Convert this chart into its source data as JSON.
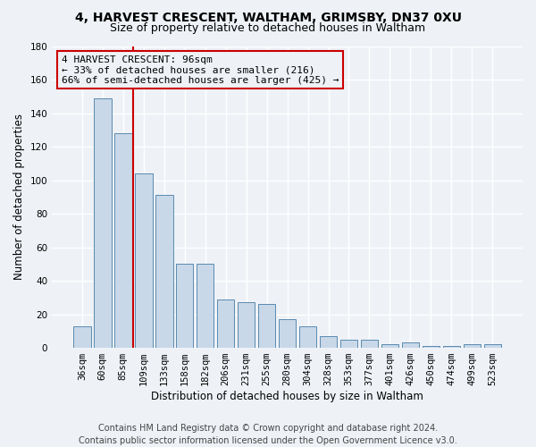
{
  "title_line1": "4, HARVEST CRESCENT, WALTHAM, GRIMSBY, DN37 0XU",
  "title_line2": "Size of property relative to detached houses in Waltham",
  "xlabel": "Distribution of detached houses by size in Waltham",
  "ylabel": "Number of detached properties",
  "bar_color": "#c8d8e8",
  "bar_edge_color": "#5a8ab0",
  "categories": [
    "36sqm",
    "60sqm",
    "85sqm",
    "109sqm",
    "133sqm",
    "158sqm",
    "182sqm",
    "206sqm",
    "231sqm",
    "255sqm",
    "280sqm",
    "304sqm",
    "328sqm",
    "353sqm",
    "377sqm",
    "401sqm",
    "426sqm",
    "450sqm",
    "474sqm",
    "499sqm",
    "523sqm"
  ],
  "values": [
    13,
    149,
    128,
    104,
    91,
    50,
    50,
    29,
    27,
    26,
    17,
    13,
    7,
    5,
    5,
    2,
    3,
    1,
    1,
    2,
    2
  ],
  "ylim": [
    0,
    180
  ],
  "yticks": [
    0,
    20,
    40,
    60,
    80,
    100,
    120,
    140,
    160,
    180
  ],
  "vline_x": 2.5,
  "vline_color": "#cc0000",
  "annotation_line1": "4 HARVEST CRESCENT: 96sqm",
  "annotation_line2": "← 33% of detached houses are smaller (216)",
  "annotation_line3": "66% of semi-detached houses are larger (425) →",
  "footer_line1": "Contains HM Land Registry data © Crown copyright and database right 2024.",
  "footer_line2": "Contains public sector information licensed under the Open Government Licence v3.0.",
  "background_color": "#eef2f7",
  "grid_color": "#ffffff",
  "title_fontsize": 10,
  "subtitle_fontsize": 9,
  "axis_label_fontsize": 8.5,
  "tick_fontsize": 7.5,
  "footer_fontsize": 7,
  "annotation_fontsize": 8
}
